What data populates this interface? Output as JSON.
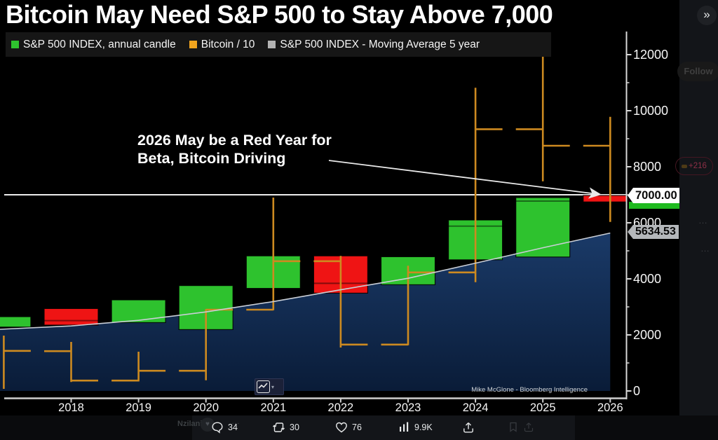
{
  "viewer": {
    "next_glyph": "»",
    "follow_label": "Follow",
    "grok_badge": "+216",
    "more_ellipsis": "…",
    "username_fragment": "Nzilani6",
    "avatar_glyph": "♥",
    "actions": {
      "replies": "34",
      "reposts": "30",
      "likes": "76",
      "views": "9.9K"
    }
  },
  "chart": {
    "credit": "Mike McGlone - Bloomberg Intelligence",
    "toolbar_caret": "▾"
  },
  "chart_data": {
    "type": "candlestick",
    "title": "Bitcoin May Need S&P 500 to Stay Above 7,000",
    "legend": [
      {
        "label": "S&P 500 INDEX, annual candle",
        "color": "#2ec22e"
      },
      {
        "label": "Bitcoin / 10",
        "color": "#f0a41e"
      },
      {
        "label": "S&P 500 INDEX - Moving Average 5 year",
        "color": "#b3b3b3"
      }
    ],
    "annotation": {
      "line1": "2026 May be a Red Year for",
      "line2": "Beta, Bitcoin Driving"
    },
    "right_axis_tags": {
      "threshold_level": "7000.00",
      "ma_last": "5634.53"
    },
    "threshold_value": 7000,
    "x_ticks": [
      2018,
      2019,
      2020,
      2021,
      2022,
      2023,
      2024,
      2025,
      2026
    ],
    "y_ticks": [
      0,
      2000,
      4000,
      6000,
      8000,
      10000,
      12000
    ],
    "y_minor_ticks": [
      1000,
      3000,
      5000,
      7000,
      9000,
      11000
    ],
    "ylim": [
      0,
      12800
    ],
    "xlim_years": [
      2016.9,
      2026.25
    ],
    "grid": false,
    "legend_position": "top",
    "series": [
      {
        "name": "S&P 500 INDEX, annual candle",
        "kind": "high-low candles, green up / red down, inner line = close",
        "candles": [
          {
            "year": 2017,
            "high": 2650,
            "low": 2280,
            "dir": "up"
          },
          {
            "year": 2018,
            "high": 2940,
            "low": 2350,
            "close": 2510,
            "dir": "down"
          },
          {
            "year": 2019,
            "high": 3250,
            "low": 2440,
            "dir": "up"
          },
          {
            "year": 2020,
            "high": 3760,
            "low": 2190,
            "dir": "up"
          },
          {
            "year": 2021,
            "high": 4820,
            "low": 3660,
            "dir": "up"
          },
          {
            "year": 2022,
            "high": 4820,
            "low": 3490,
            "close": 3840,
            "dir": "down"
          },
          {
            "year": 2023,
            "high": 4790,
            "low": 3790,
            "dir": "up"
          },
          {
            "year": 2024,
            "high": 6100,
            "low": 4680,
            "close": 5880,
            "dir": "up"
          },
          {
            "year": 2025,
            "high": 6900,
            "low": 4780,
            "close": 6775,
            "dir": "up"
          },
          {
            "year": 2026,
            "high": 6975,
            "low": 6745,
            "dir": "down"
          }
        ]
      },
      {
        "name": "Bitcoin / 10",
        "kind": "OHLC bars (open tick left, close tick right), values are BTC price divided by 10",
        "bars": [
          {
            "year": 2017,
            "high": 1975,
            "low": 75,
            "close": 1430
          },
          {
            "year": 2018,
            "open": 1420,
            "high": 1750,
            "low": 320,
            "close": 370
          },
          {
            "year": 2019,
            "open": 370,
            "high": 1400,
            "low": 340,
            "close": 720
          },
          {
            "year": 2020,
            "open": 720,
            "high": 2920,
            "low": 380,
            "close": 2900
          },
          {
            "year": 2021,
            "open": 2900,
            "high": 6900,
            "low": 2880,
            "close": 4630
          },
          {
            "year": 2022,
            "open": 4630,
            "high": 4820,
            "low": 1550,
            "close": 1655
          },
          {
            "year": 2023,
            "open": 1655,
            "high": 4470,
            "low": 1630,
            "close": 4230
          },
          {
            "year": 2024,
            "open": 4230,
            "high": 10820,
            "low": 3880,
            "close": 9340
          },
          {
            "year": 2025,
            "open": 9340,
            "high": 12620,
            "low": 7480,
            "close": 8750
          },
          {
            "year": 2026,
            "open": 8750,
            "high": 9780,
            "low": 6030
          }
        ]
      },
      {
        "name": "S&P 500 INDEX - Moving Average 5 year",
        "kind": "line with filled area below",
        "points": [
          {
            "year": 2016.9,
            "value": 2195
          },
          {
            "year": 2018,
            "value": 2320
          },
          {
            "year": 2019,
            "value": 2520
          },
          {
            "year": 2020,
            "value": 2820
          },
          {
            "year": 2021,
            "value": 3190
          },
          {
            "year": 2022,
            "value": 3610
          },
          {
            "year": 2023,
            "value": 4020
          },
          {
            "year": 2024,
            "value": 4560
          },
          {
            "year": 2025,
            "value": 5110
          },
          {
            "year": 2026,
            "value": 5634.53
          }
        ]
      }
    ],
    "colors": {
      "up": "#2ec22e",
      "down": "#ef1414",
      "candle_border": "#000000",
      "bitcoin": "#cd8a20",
      "ma_line": "#c9ced6",
      "area_top": "#1a3a68",
      "area_bottom": "#0a1c38",
      "threshold": "#ededed",
      "axis": "#d9d9d9",
      "tick_label": "#f6f6f6",
      "arrow": "#e9e9e9"
    }
  }
}
